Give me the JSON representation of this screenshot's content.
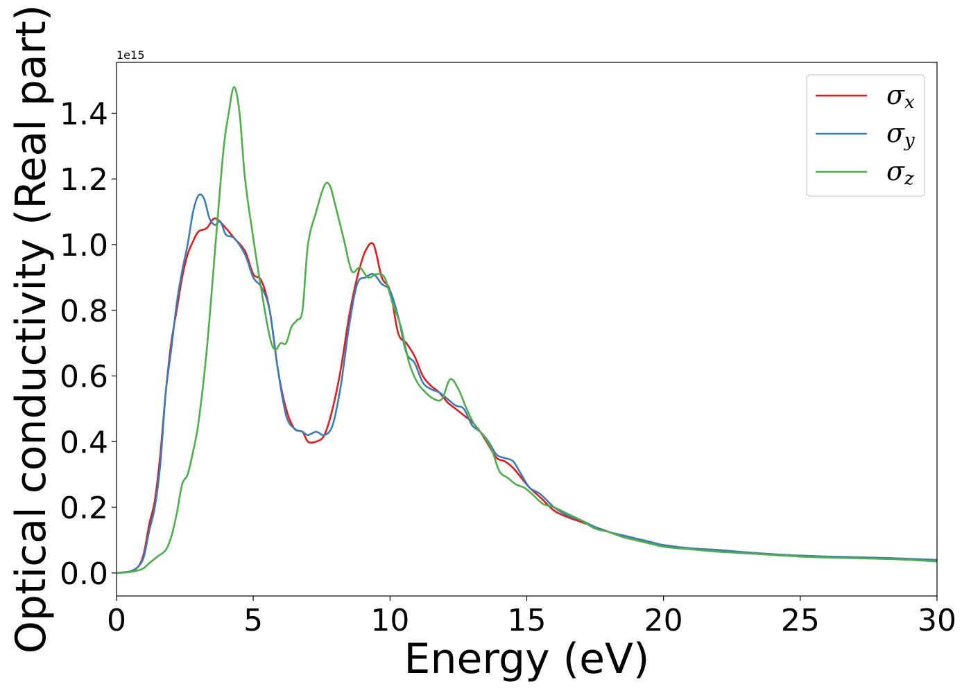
{
  "chart_data": {
    "type": "line",
    "xlabel": "Energy (eV)",
    "ylabel": "Optical conductivity (Real part)",
    "y_scale_label": "1e15",
    "y_scale": 1000000000000000.0,
    "xlim": [
      0,
      30
    ],
    "ylim": [
      -0.07,
      1.555
    ],
    "xticks": [
      0,
      5,
      10,
      15,
      20,
      25,
      30
    ],
    "xtick_labels": [
      "0",
      "5",
      "10",
      "15",
      "20",
      "25",
      "30"
    ],
    "yticks": [
      0.0,
      0.2,
      0.4,
      0.6,
      0.8,
      1.0,
      1.2,
      1.4
    ],
    "ytick_labels": [
      "0.0",
      "0.2",
      "0.4",
      "0.6",
      "0.8",
      "1.0",
      "1.2",
      "1.4"
    ],
    "grid": false,
    "legend_position": "top-right",
    "series": [
      {
        "name": "σx",
        "symbol": "σ",
        "subscript": "x",
        "color": "#e41a1c",
        "x": [
          0,
          0.5,
          0.8,
          1.0,
          1.2,
          1.4,
          1.6,
          1.8,
          2.0,
          2.2,
          2.4,
          2.6,
          2.8,
          3.0,
          3.3,
          3.6,
          4.0,
          4.3,
          4.7,
          5.0,
          5.3,
          5.6,
          5.9,
          6.2,
          6.5,
          6.8,
          7.0,
          7.3,
          7.6,
          7.9,
          8.2,
          8.5,
          8.8,
          9.1,
          9.4,
          9.7,
          10.0,
          10.3,
          10.6,
          10.9,
          11.2,
          11.5,
          11.8,
          12.1,
          12.4,
          12.7,
          13.0,
          13.3,
          13.6,
          13.9,
          14.2,
          14.5,
          14.8,
          15.1,
          15.5,
          16.0,
          16.5,
          17.0,
          17.5,
          18.0,
          18.5,
          19.0,
          19.5,
          20.0,
          21,
          22,
          23,
          24,
          25,
          26,
          27,
          28,
          29,
          30
        ],
        "values": [
          0.0,
          0.005,
          0.02,
          0.06,
          0.15,
          0.22,
          0.36,
          0.55,
          0.7,
          0.8,
          0.9,
          0.97,
          1.01,
          1.04,
          1.05,
          1.08,
          1.05,
          1.02,
          0.98,
          0.91,
          0.89,
          0.8,
          0.62,
          0.5,
          0.44,
          0.43,
          0.4,
          0.4,
          0.42,
          0.5,
          0.62,
          0.78,
          0.9,
          0.98,
          1.0,
          0.9,
          0.86,
          0.73,
          0.7,
          0.66,
          0.6,
          0.57,
          0.55,
          0.52,
          0.5,
          0.48,
          0.46,
          0.43,
          0.39,
          0.35,
          0.34,
          0.32,
          0.29,
          0.26,
          0.23,
          0.19,
          0.17,
          0.155,
          0.14,
          0.125,
          0.11,
          0.1,
          0.09,
          0.085,
          0.075,
          0.07,
          0.063,
          0.057,
          0.052,
          0.048,
          0.046,
          0.044,
          0.042,
          0.04
        ]
      },
      {
        "name": "σy",
        "symbol": "σ",
        "subscript": "y",
        "color": "#377eb8",
        "x": [
          0,
          0.5,
          0.8,
          1.0,
          1.2,
          1.4,
          1.6,
          1.8,
          2.0,
          2.2,
          2.4,
          2.6,
          2.8,
          3.0,
          3.2,
          3.4,
          3.6,
          3.8,
          4.0,
          4.3,
          4.7,
          5.0,
          5.3,
          5.6,
          5.9,
          6.2,
          6.5,
          6.8,
          7.0,
          7.3,
          7.6,
          7.9,
          8.2,
          8.5,
          8.8,
          9.1,
          9.4,
          9.7,
          10.0,
          10.3,
          10.6,
          10.9,
          11.2,
          11.5,
          11.8,
          12.1,
          12.4,
          12.7,
          13.0,
          13.3,
          13.6,
          13.9,
          14.2,
          14.5,
          14.8,
          15.1,
          15.5,
          16.0,
          16.5,
          17.0,
          17.5,
          18.0,
          18.5,
          19.0,
          19.5,
          20.0,
          21,
          22,
          23,
          24,
          25,
          26,
          27,
          28,
          29,
          30
        ],
        "values": [
          0.0,
          0.005,
          0.02,
          0.05,
          0.13,
          0.2,
          0.33,
          0.55,
          0.68,
          0.82,
          0.92,
          1.0,
          1.1,
          1.15,
          1.14,
          1.08,
          1.06,
          1.07,
          1.03,
          1.02,
          0.97,
          0.9,
          0.87,
          0.8,
          0.62,
          0.48,
          0.44,
          0.43,
          0.42,
          0.43,
          0.42,
          0.45,
          0.57,
          0.75,
          0.88,
          0.9,
          0.91,
          0.88,
          0.86,
          0.78,
          0.67,
          0.64,
          0.58,
          0.56,
          0.55,
          0.53,
          0.51,
          0.5,
          0.45,
          0.43,
          0.4,
          0.36,
          0.35,
          0.34,
          0.3,
          0.26,
          0.24,
          0.2,
          0.175,
          0.16,
          0.14,
          0.125,
          0.115,
          0.105,
          0.095,
          0.085,
          0.075,
          0.07,
          0.063,
          0.057,
          0.053,
          0.05,
          0.048,
          0.046,
          0.043,
          0.04
        ]
      },
      {
        "name": "σz",
        "symbol": "σ",
        "subscript": "z",
        "color": "#4daf4a",
        "x": [
          0,
          0.5,
          0.8,
          1.0,
          1.2,
          1.5,
          1.8,
          2.0,
          2.2,
          2.4,
          2.6,
          2.8,
          3.0,
          3.3,
          3.6,
          3.9,
          4.1,
          4.3,
          4.5,
          4.7,
          5.0,
          5.3,
          5.6,
          5.8,
          6.0,
          6.2,
          6.4,
          6.6,
          6.8,
          7.0,
          7.3,
          7.6,
          7.8,
          8.0,
          8.3,
          8.6,
          8.9,
          9.2,
          9.5,
          9.8,
          10.1,
          10.4,
          10.7,
          11.0,
          11.3,
          11.6,
          11.9,
          12.2,
          12.5,
          12.8,
          13.1,
          13.4,
          13.7,
          14.0,
          14.3,
          14.6,
          14.9,
          15.2,
          15.6,
          16.0,
          16.5,
          17.0,
          17.5,
          18.0,
          18.5,
          19.0,
          19.5,
          20.0,
          21,
          22,
          23,
          24,
          25,
          26,
          27,
          28,
          29,
          30
        ],
        "values": [
          0.0,
          0.003,
          0.008,
          0.015,
          0.03,
          0.05,
          0.07,
          0.11,
          0.18,
          0.27,
          0.3,
          0.37,
          0.46,
          0.68,
          0.98,
          1.28,
          1.4,
          1.48,
          1.4,
          1.2,
          1.02,
          0.86,
          0.72,
          0.68,
          0.7,
          0.7,
          0.75,
          0.77,
          0.8,
          1.0,
          1.1,
          1.18,
          1.18,
          1.12,
          1.02,
          0.92,
          0.93,
          0.9,
          0.91,
          0.9,
          0.82,
          0.75,
          0.64,
          0.58,
          0.55,
          0.53,
          0.53,
          0.59,
          0.56,
          0.5,
          0.45,
          0.42,
          0.38,
          0.31,
          0.29,
          0.27,
          0.26,
          0.24,
          0.21,
          0.2,
          0.18,
          0.16,
          0.135,
          0.125,
          0.11,
          0.1,
          0.09,
          0.08,
          0.072,
          0.065,
          0.06,
          0.055,
          0.05,
          0.047,
          0.045,
          0.043,
          0.04,
          0.035
        ]
      }
    ]
  }
}
